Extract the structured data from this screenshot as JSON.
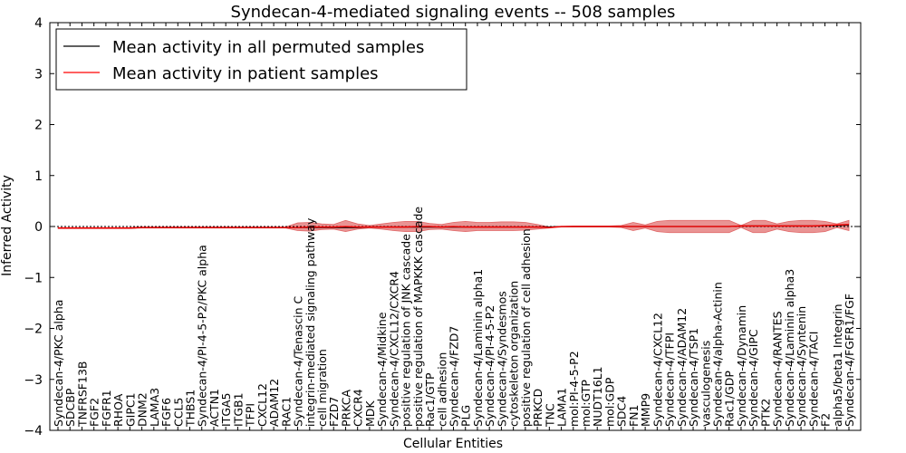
{
  "chart_data": {
    "type": "line",
    "title": "Syndecan-4-mediated signaling events -- 508 samples",
    "xlabel": "Cellular Entities",
    "ylabel": "Inferred Activity",
    "ylim": [
      -4,
      4
    ],
    "yticks": [
      "4",
      "3",
      "2",
      "1",
      "0",
      "−1",
      "−2",
      "−3",
      "−4"
    ],
    "legend": {
      "position": "top-left",
      "entries": [
        {
          "label": "Mean activity in all permuted samples",
          "color": "#000000"
        },
        {
          "label": "Mean activity in patient samples",
          "color": "#ff0000"
        }
      ]
    },
    "categories": [
      "Syndecan-4/PKC alpha",
      "SDCBP",
      "TNFRSF13B",
      "FGF2",
      "FGFR1",
      "RHOA",
      "GIPC1",
      "DNM2",
      "LAMA3",
      "FGF6",
      "CCL5",
      "THBS1",
      "Syndecan-4/PI-4-5-P2/PKC alpha",
      "ACTN1",
      "ITGA5",
      "ITGB1",
      "TFPI",
      "CXCL12",
      "ADAM12",
      "RAC1",
      "Syndecan-4/Tenascin C",
      "integrin-mediated signaling pathway",
      "cell migration",
      "FZD7",
      "PRKCA",
      "CXCR4",
      "MDK",
      "Syndecan-4/Midkine",
      "Syndecan-4/CXCL12/CXCR4",
      "positive regulation of JNK cascade",
      "positive regulation of MAPKKK cascade",
      "Rac1/GTP",
      "cell adhesion",
      "Syndecan-4/FZD7",
      "PLG",
      "Syndecan-4/Laminin alpha1",
      "Syndecan-4/PI-4-5-P2",
      "Syndecan-4/Syndesmos",
      "cytoskeleton organization",
      "positive regulation of cell adhesion",
      "PRKCD",
      "TNC",
      "LAMA1",
      "mol:PI-4-5-P2",
      "mol:GTP",
      "NUDT16L1",
      "mol:GDP",
      "SDC4",
      "FN1",
      "MMP9",
      "Syndecan-4/CXCL12",
      "Syndecan-4/TFPI",
      "Syndecan-4/ADAM12",
      "Syndecan-4/TSP1",
      "vasculogenesis",
      "Syndecan-4/alpha-Actinin",
      "Rac1/GDP",
      "Syndecan-4/Dynamin",
      "Syndecan-4/GIPC",
      "PTK2",
      "Syndecan-4/RANTES",
      "Syndecan-4/Laminin alpha3",
      "Syndecan-4/Syntenin",
      "Syndecan-4/TACI",
      "F2",
      "alpha5/beta1 Integrin",
      "Syndecan-4/FGFR1/FGF"
    ],
    "series": [
      {
        "name": "Mean activity in all permuted samples",
        "color": "#000000",
        "values": [
          -0.03,
          -0.03,
          -0.03,
          -0.03,
          -0.03,
          -0.03,
          -0.03,
          -0.02,
          -0.02,
          -0.02,
          -0.02,
          -0.02,
          -0.02,
          -0.02,
          -0.02,
          -0.02,
          -0.02,
          -0.02,
          -0.02,
          -0.02,
          -0.02,
          -0.02,
          -0.02,
          -0.02,
          -0.02,
          -0.02,
          -0.01,
          -0.01,
          -0.01,
          -0.01,
          -0.01,
          -0.01,
          -0.01,
          -0.01,
          -0.01,
          -0.01,
          -0.01,
          -0.01,
          -0.01,
          -0.01,
          -0.01,
          -0.01,
          0.0,
          0.0,
          0.0,
          0.0,
          0.0,
          0.0,
          0.0,
          0.0,
          0.0,
          0.0,
          0.0,
          0.0,
          0.0,
          0.0,
          0.0,
          0.01,
          0.01,
          0.01,
          0.01,
          0.01,
          0.01,
          0.01,
          0.02,
          0.02,
          0.03
        ]
      },
      {
        "name": "Mean activity in patient samples",
        "color": "#ff0000",
        "values": [
          -0.03,
          -0.03,
          -0.03,
          -0.03,
          -0.03,
          -0.03,
          -0.03,
          -0.02,
          -0.02,
          -0.02,
          -0.02,
          -0.02,
          -0.02,
          -0.02,
          -0.02,
          -0.02,
          -0.02,
          -0.02,
          -0.02,
          -0.02,
          -0.02,
          -0.01,
          -0.01,
          -0.01,
          0.0,
          -0.01,
          -0.01,
          -0.01,
          -0.01,
          -0.01,
          0.0,
          0.0,
          -0.01,
          0.0,
          -0.01,
          -0.01,
          -0.01,
          -0.01,
          -0.01,
          -0.01,
          -0.01,
          -0.02,
          0.0,
          0.0,
          0.0,
          0.0,
          0.0,
          0.0,
          0.0,
          0.0,
          0.0,
          0.0,
          0.0,
          0.0,
          0.0,
          0.0,
          0.0,
          0.01,
          0.01,
          0.01,
          0.01,
          0.01,
          0.01,
          0.01,
          0.02,
          0.03,
          0.04
        ]
      }
    ],
    "band": {
      "name": "patient spread",
      "color": "#e06666",
      "upper": [
        -0.02,
        -0.02,
        -0.02,
        -0.02,
        -0.02,
        -0.02,
        -0.02,
        -0.01,
        -0.01,
        -0.01,
        -0.01,
        -0.01,
        -0.01,
        -0.01,
        -0.01,
        -0.01,
        -0.01,
        -0.01,
        -0.01,
        -0.01,
        0.07,
        0.08,
        0.05,
        0.04,
        0.12,
        0.05,
        0.02,
        0.05,
        0.08,
        0.1,
        0.1,
        0.06,
        0.04,
        0.08,
        0.1,
        0.08,
        0.08,
        0.09,
        0.09,
        0.08,
        0.04,
        -0.01,
        0.0,
        0.01,
        0.01,
        0.01,
        0.01,
        0.02,
        0.08,
        0.03,
        0.1,
        0.12,
        0.12,
        0.12,
        0.12,
        0.12,
        0.12,
        0.02,
        0.12,
        0.12,
        0.05,
        0.1,
        0.12,
        0.12,
        0.1,
        0.05,
        0.12
      ],
      "lower": [
        -0.04,
        -0.04,
        -0.04,
        -0.04,
        -0.04,
        -0.04,
        -0.04,
        -0.03,
        -0.03,
        -0.03,
        -0.03,
        -0.03,
        -0.03,
        -0.03,
        -0.03,
        -0.03,
        -0.03,
        -0.03,
        -0.03,
        -0.03,
        -0.08,
        -0.09,
        -0.06,
        -0.05,
        -0.1,
        -0.05,
        -0.03,
        -0.05,
        -0.08,
        -0.1,
        -0.1,
        -0.06,
        -0.05,
        -0.08,
        -0.1,
        -0.08,
        -0.08,
        -0.08,
        -0.08,
        -0.07,
        -0.05,
        -0.03,
        -0.01,
        -0.01,
        -0.01,
        -0.01,
        -0.01,
        -0.02,
        -0.08,
        -0.03,
        -0.1,
        -0.12,
        -0.12,
        -0.12,
        -0.12,
        -0.12,
        -0.12,
        -0.02,
        -0.12,
        -0.12,
        -0.05,
        -0.1,
        -0.12,
        -0.12,
        -0.1,
        -0.02,
        -0.08
      ]
    }
  }
}
